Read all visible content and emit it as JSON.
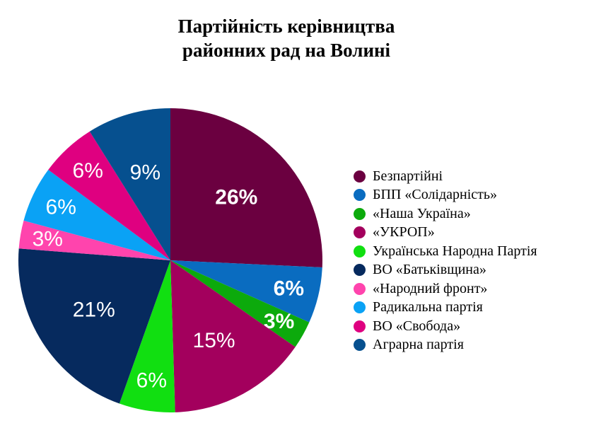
{
  "chart_data": {
    "type": "pie",
    "title_lines": [
      "Партійність керівництва",
      "районних рад на Волині"
    ],
    "legend_position": "right",
    "start_angle_deg": 0,
    "direction": "clockwise",
    "series": [
      {
        "name": "Безпартійні",
        "value": 26,
        "label": "26%",
        "color": "#6b0040",
        "label_color": "#ffffff",
        "label_bold": true
      },
      {
        "name": "БПП «Солідарність»",
        "value": 6,
        "label": "6%",
        "color": "#0a6cc0",
        "label_color": "#ffffff",
        "label_bold": true
      },
      {
        "name": "«Наша Україна»",
        "value": 3,
        "label": "3%",
        "color": "#0caa0c",
        "label_color": "#ffffff",
        "label_bold": true
      },
      {
        "name": "«УКРОП»",
        "value": 15,
        "label": "15%",
        "color": "#a3005d",
        "label_color": "#ffffff",
        "label_bold": false
      },
      {
        "name": "Українська Народна Партія",
        "value": 6,
        "label": "6%",
        "color": "#11df11",
        "label_color": "#ffffff",
        "label_bold": false
      },
      {
        "name": "ВО «Батьківщина»",
        "value": 21,
        "label": "21%",
        "color": "#062a5e",
        "label_color": "#ffffff",
        "label_bold": false
      },
      {
        "name": "«Народний фронт»",
        "value": 3,
        "label": "3%",
        "color": "#ff44ad",
        "label_color": "#ffffff",
        "label_bold": false
      },
      {
        "name": "Радикальна партія",
        "value": 6,
        "label": "6%",
        "color": "#0aa2f5",
        "label_color": "#ffffff",
        "label_bold": false
      },
      {
        "name": "ВО «Свобода»",
        "value": 6,
        "label": "6%",
        "color": "#df0080",
        "label_color": "#ffffff",
        "label_bold": false
      },
      {
        "name": "Аграрна партія",
        "value": 9,
        "label": "9%",
        "color": "#06508f",
        "label_color": "#ffffff",
        "label_bold": false
      }
    ]
  }
}
